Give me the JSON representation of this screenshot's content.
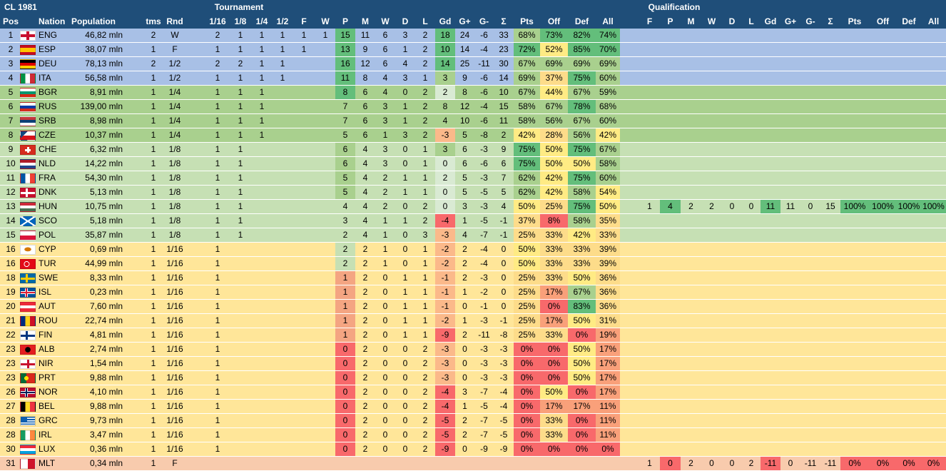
{
  "title": "CL 1981",
  "group_headers": {
    "tournament": "Tournament",
    "qualification": "Qualification"
  },
  "columns": {
    "left": [
      "Pos",
      "Nation",
      "Population",
      "tms",
      "Rnd"
    ],
    "rounds": [
      "1/16",
      "1/8",
      "1/4",
      "1/2",
      "F",
      "W"
    ],
    "stats": [
      "P",
      "M",
      "W",
      "D",
      "L",
      "Gd",
      "G+",
      "G-",
      "Σ",
      "Pts",
      "Off",
      "Def",
      "All"
    ],
    "qual": [
      "F",
      "P",
      "M",
      "W",
      "D",
      "L",
      "Gd",
      "G+",
      "G-",
      "Σ",
      "Pts",
      "Off",
      "Def",
      "All"
    ]
  },
  "colors": {
    "header_bg": "#1f4e79",
    "band_blue": "#a8c0e6",
    "band_green_dark": "#a9d08e",
    "band_green_light": "#c6e0b4",
    "band_yellow": "#ffe699",
    "band_salmon": "#f8cbad",
    "cell_green": "#63be7b",
    "cell_red": "#f8696b",
    "cell_yellow": "#ffeb84"
  },
  "rows": [
    {
      "pos": "1",
      "nation": "ENG",
      "flag": "eng",
      "pop": "46,82 mln",
      "tms": "2",
      "rnd": "W",
      "r": [
        "2",
        "1",
        "1",
        "1",
        "1",
        "1"
      ],
      "s": [
        "15",
        "11",
        "6",
        "3",
        "2",
        "18",
        "24",
        "-6",
        "33",
        "68%",
        "73%",
        "82%",
        "74%"
      ],
      "q": null,
      "band": "band_blue"
    },
    {
      "pos": "2",
      "nation": "ESP",
      "flag": "esp",
      "pop": "38,07 mln",
      "tms": "1",
      "rnd": "F",
      "r": [
        "1",
        "1",
        "1",
        "1",
        "1",
        ""
      ],
      "s": [
        "13",
        "9",
        "6",
        "1",
        "2",
        "10",
        "14",
        "-4",
        "23",
        "72%",
        "52%",
        "85%",
        "70%"
      ],
      "q": null,
      "band": "band_blue"
    },
    {
      "pos": "3",
      "nation": "DEU",
      "flag": "deu",
      "pop": "78,13 mln",
      "tms": "2",
      "rnd": "1/2",
      "r": [
        "2",
        "2",
        "1",
        "1",
        "",
        ""
      ],
      "s": [
        "16",
        "12",
        "6",
        "4",
        "2",
        "14",
        "25",
        "-11",
        "30",
        "67%",
        "69%",
        "69%",
        "69%"
      ],
      "q": null,
      "band": "band_blue"
    },
    {
      "pos": "4",
      "nation": "ITA",
      "flag": "ita",
      "pop": "56,58 mln",
      "tms": "1",
      "rnd": "1/2",
      "r": [
        "1",
        "1",
        "1",
        "1",
        "",
        ""
      ],
      "s": [
        "11",
        "8",
        "4",
        "3",
        "1",
        "3",
        "9",
        "-6",
        "14",
        "69%",
        "37%",
        "75%",
        "60%"
      ],
      "q": null,
      "band": "band_blue"
    },
    {
      "pos": "5",
      "nation": "BGR",
      "flag": "bgr",
      "pop": "8,91 mln",
      "tms": "1",
      "rnd": "1/4",
      "r": [
        "1",
        "1",
        "1",
        "",
        "",
        ""
      ],
      "s": [
        "8",
        "6",
        "4",
        "0",
        "2",
        "2",
        "8",
        "-6",
        "10",
        "67%",
        "44%",
        "67%",
        "59%"
      ],
      "q": null,
      "band": "band_green_dark"
    },
    {
      "pos": "6",
      "nation": "RUS",
      "flag": "rus",
      "pop": "139,00 mln",
      "tms": "1",
      "rnd": "1/4",
      "r": [
        "1",
        "1",
        "1",
        "",
        "",
        ""
      ],
      "s": [
        "7",
        "6",
        "3",
        "1",
        "2",
        "8",
        "12",
        "-4",
        "15",
        "58%",
        "67%",
        "78%",
        "68%"
      ],
      "q": null,
      "band": "band_green_dark"
    },
    {
      "pos": "7",
      "nation": "SRB",
      "flag": "srb",
      "pop": "8,98 mln",
      "tms": "1",
      "rnd": "1/4",
      "r": [
        "1",
        "1",
        "1",
        "",
        "",
        ""
      ],
      "s": [
        "7",
        "6",
        "3",
        "1",
        "2",
        "4",
        "10",
        "-6",
        "11",
        "58%",
        "56%",
        "67%",
        "60%"
      ],
      "q": null,
      "band": "band_green_dark"
    },
    {
      "pos": "8",
      "nation": "CZE",
      "flag": "cze",
      "pop": "10,37 mln",
      "tms": "1",
      "rnd": "1/4",
      "r": [
        "1",
        "1",
        "1",
        "",
        "",
        ""
      ],
      "s": [
        "5",
        "6",
        "1",
        "3",
        "2",
        "-3",
        "5",
        "-8",
        "2",
        "42%",
        "28%",
        "56%",
        "42%"
      ],
      "q": null,
      "band": "band_green_dark"
    },
    {
      "pos": "9",
      "nation": "CHE",
      "flag": "che",
      "pop": "6,32 mln",
      "tms": "1",
      "rnd": "1/8",
      "r": [
        "1",
        "1",
        "",
        "",
        "",
        ""
      ],
      "s": [
        "6",
        "4",
        "3",
        "0",
        "1",
        "3",
        "6",
        "-3",
        "9",
        "75%",
        "50%",
        "75%",
        "67%"
      ],
      "q": null,
      "band": "band_green_light"
    },
    {
      "pos": "10",
      "nation": "NLD",
      "flag": "nld",
      "pop": "14,22 mln",
      "tms": "1",
      "rnd": "1/8",
      "r": [
        "1",
        "1",
        "",
        "",
        "",
        ""
      ],
      "s": [
        "6",
        "4",
        "3",
        "0",
        "1",
        "0",
        "6",
        "-6",
        "6",
        "75%",
        "50%",
        "50%",
        "58%"
      ],
      "q": null,
      "band": "band_green_light"
    },
    {
      "pos": "11",
      "nation": "FRA",
      "flag": "fra",
      "pop": "54,30 mln",
      "tms": "1",
      "rnd": "1/8",
      "r": [
        "1",
        "1",
        "",
        "",
        "",
        ""
      ],
      "s": [
        "5",
        "4",
        "2",
        "1",
        "1",
        "2",
        "5",
        "-3",
        "7",
        "62%",
        "42%",
        "75%",
        "60%"
      ],
      "q": null,
      "band": "band_green_light"
    },
    {
      "pos": "12",
      "nation": "DNK",
      "flag": "dnk",
      "pop": "5,13 mln",
      "tms": "1",
      "rnd": "1/8",
      "r": [
        "1",
        "1",
        "",
        "",
        "",
        ""
      ],
      "s": [
        "5",
        "4",
        "2",
        "1",
        "1",
        "0",
        "5",
        "-5",
        "5",
        "62%",
        "42%",
        "58%",
        "54%"
      ],
      "q": null,
      "band": "band_green_light"
    },
    {
      "pos": "13",
      "nation": "HUN",
      "flag": "hun",
      "pop": "10,75 mln",
      "tms": "1",
      "rnd": "1/8",
      "r": [
        "1",
        "1",
        "",
        "",
        "",
        ""
      ],
      "s": [
        "4",
        "4",
        "2",
        "0",
        "2",
        "0",
        "3",
        "-3",
        "4",
        "50%",
        "25%",
        "75%",
        "50%"
      ],
      "q": [
        "1",
        "4",
        "2",
        "2",
        "0",
        "0",
        "11",
        "11",
        "0",
        "15",
        "100%",
        "100%",
        "100%",
        "100%"
      ],
      "band": "band_green_light"
    },
    {
      "pos": "14",
      "nation": "SCO",
      "flag": "sco",
      "pop": "5,18 mln",
      "tms": "1",
      "rnd": "1/8",
      "r": [
        "1",
        "1",
        "",
        "",
        "",
        ""
      ],
      "s": [
        "3",
        "4",
        "1",
        "1",
        "2",
        "-4",
        "1",
        "-5",
        "-1",
        "37%",
        "8%",
        "58%",
        "35%"
      ],
      "q": null,
      "band": "band_green_light"
    },
    {
      "pos": "15",
      "nation": "POL",
      "flag": "pol",
      "pop": "35,87 mln",
      "tms": "1",
      "rnd": "1/8",
      "r": [
        "1",
        "1",
        "",
        "",
        "",
        ""
      ],
      "s": [
        "2",
        "4",
        "1",
        "0",
        "3",
        "-3",
        "4",
        "-7",
        "-1",
        "25%",
        "33%",
        "42%",
        "33%"
      ],
      "q": null,
      "band": "band_green_light"
    },
    {
      "pos": "16",
      "nation": "CYP",
      "flag": "cyp",
      "pop": "0,69 mln",
      "tms": "1",
      "rnd": "1/16",
      "r": [
        "1",
        "",
        "",
        "",
        "",
        ""
      ],
      "s": [
        "2",
        "2",
        "1",
        "0",
        "1",
        "-2",
        "2",
        "-4",
        "0",
        "50%",
        "33%",
        "33%",
        "39%"
      ],
      "q": null,
      "band": "band_yellow"
    },
    {
      "pos": "16",
      "nation": "TUR",
      "flag": "tur",
      "pop": "44,99 mln",
      "tms": "1",
      "rnd": "1/16",
      "r": [
        "1",
        "",
        "",
        "",
        "",
        ""
      ],
      "s": [
        "2",
        "2",
        "1",
        "0",
        "1",
        "-2",
        "2",
        "-4",
        "0",
        "50%",
        "33%",
        "33%",
        "39%"
      ],
      "q": null,
      "band": "band_yellow"
    },
    {
      "pos": "18",
      "nation": "SWE",
      "flag": "swe",
      "pop": "8,33 mln",
      "tms": "1",
      "rnd": "1/16",
      "r": [
        "1",
        "",
        "",
        "",
        "",
        ""
      ],
      "s": [
        "1",
        "2",
        "0",
        "1",
        "1",
        "-1",
        "2",
        "-3",
        "0",
        "25%",
        "33%",
        "50%",
        "36%"
      ],
      "q": null,
      "band": "band_yellow"
    },
    {
      "pos": "19",
      "nation": "ISL",
      "flag": "isl",
      "pop": "0,23 mln",
      "tms": "1",
      "rnd": "1/16",
      "r": [
        "1",
        "",
        "",
        "",
        "",
        ""
      ],
      "s": [
        "1",
        "2",
        "0",
        "1",
        "1",
        "-1",
        "1",
        "-2",
        "0",
        "25%",
        "17%",
        "67%",
        "36%"
      ],
      "q": null,
      "band": "band_yellow"
    },
    {
      "pos": "20",
      "nation": "AUT",
      "flag": "aut",
      "pop": "7,60 mln",
      "tms": "1",
      "rnd": "1/16",
      "r": [
        "1",
        "",
        "",
        "",
        "",
        ""
      ],
      "s": [
        "1",
        "2",
        "0",
        "1",
        "1",
        "-1",
        "0",
        "-1",
        "0",
        "25%",
        "0%",
        "83%",
        "36%"
      ],
      "q": null,
      "band": "band_yellow"
    },
    {
      "pos": "21",
      "nation": "ROU",
      "flag": "rou",
      "pop": "22,74 mln",
      "tms": "1",
      "rnd": "1/16",
      "r": [
        "1",
        "",
        "",
        "",
        "",
        ""
      ],
      "s": [
        "1",
        "2",
        "0",
        "1",
        "1",
        "-2",
        "1",
        "-3",
        "-1",
        "25%",
        "17%",
        "50%",
        "31%"
      ],
      "q": null,
      "band": "band_yellow"
    },
    {
      "pos": "22",
      "nation": "FIN",
      "flag": "fin",
      "pop": "4,81 mln",
      "tms": "1",
      "rnd": "1/16",
      "r": [
        "1",
        "",
        "",
        "",
        "",
        ""
      ],
      "s": [
        "1",
        "2",
        "0",
        "1",
        "1",
        "-9",
        "2",
        "-11",
        "-8",
        "25%",
        "33%",
        "0%",
        "19%"
      ],
      "q": null,
      "band": "band_yellow"
    },
    {
      "pos": "23",
      "nation": "ALB",
      "flag": "alb",
      "pop": "2,74 mln",
      "tms": "1",
      "rnd": "1/16",
      "r": [
        "1",
        "",
        "",
        "",
        "",
        ""
      ],
      "s": [
        "0",
        "2",
        "0",
        "0",
        "2",
        "-3",
        "0",
        "-3",
        "-3",
        "0%",
        "0%",
        "50%",
        "17%"
      ],
      "q": null,
      "band": "band_yellow"
    },
    {
      "pos": "23",
      "nation": "NIR",
      "flag": "nir",
      "pop": "1,54 mln",
      "tms": "1",
      "rnd": "1/16",
      "r": [
        "1",
        "",
        "",
        "",
        "",
        ""
      ],
      "s": [
        "0",
        "2",
        "0",
        "0",
        "2",
        "-3",
        "0",
        "-3",
        "-3",
        "0%",
        "0%",
        "50%",
        "17%"
      ],
      "q": null,
      "band": "band_yellow"
    },
    {
      "pos": "23",
      "nation": "PRT",
      "flag": "prt",
      "pop": "9,88 mln",
      "tms": "1",
      "rnd": "1/16",
      "r": [
        "1",
        "",
        "",
        "",
        "",
        ""
      ],
      "s": [
        "0",
        "2",
        "0",
        "0",
        "2",
        "-3",
        "0",
        "-3",
        "-3",
        "0%",
        "0%",
        "50%",
        "17%"
      ],
      "q": null,
      "band": "band_yellow"
    },
    {
      "pos": "26",
      "nation": "NOR",
      "flag": "nor",
      "pop": "4,10 mln",
      "tms": "1",
      "rnd": "1/16",
      "r": [
        "1",
        "",
        "",
        "",
        "",
        ""
      ],
      "s": [
        "0",
        "2",
        "0",
        "0",
        "2",
        "-4",
        "3",
        "-7",
        "-4",
        "0%",
        "50%",
        "0%",
        "17%"
      ],
      "q": null,
      "band": "band_yellow"
    },
    {
      "pos": "27",
      "nation": "BEL",
      "flag": "bel",
      "pop": "9,88 mln",
      "tms": "1",
      "rnd": "1/16",
      "r": [
        "1",
        "",
        "",
        "",
        "",
        ""
      ],
      "s": [
        "0",
        "2",
        "0",
        "0",
        "2",
        "-4",
        "1",
        "-5",
        "-4",
        "0%",
        "17%",
        "17%",
        "11%"
      ],
      "q": null,
      "band": "band_yellow"
    },
    {
      "pos": "28",
      "nation": "GRC",
      "flag": "grc",
      "pop": "9,73 mln",
      "tms": "1",
      "rnd": "1/16",
      "r": [
        "1",
        "",
        "",
        "",
        "",
        ""
      ],
      "s": [
        "0",
        "2",
        "0",
        "0",
        "2",
        "-5",
        "2",
        "-7",
        "-5",
        "0%",
        "33%",
        "0%",
        "11%"
      ],
      "q": null,
      "band": "band_yellow"
    },
    {
      "pos": "28",
      "nation": "IRL",
      "flag": "irl",
      "pop": "3,47 mln",
      "tms": "1",
      "rnd": "1/16",
      "r": [
        "1",
        "",
        "",
        "",
        "",
        ""
      ],
      "s": [
        "0",
        "2",
        "0",
        "0",
        "2",
        "-5",
        "2",
        "-7",
        "-5",
        "0%",
        "33%",
        "0%",
        "11%"
      ],
      "q": null,
      "band": "band_yellow"
    },
    {
      "pos": "30",
      "nation": "LUX",
      "flag": "lux",
      "pop": "0,36 mln",
      "tms": "1",
      "rnd": "1/16",
      "r": [
        "1",
        "",
        "",
        "",
        "",
        ""
      ],
      "s": [
        "0",
        "2",
        "0",
        "0",
        "2",
        "-9",
        "0",
        "-9",
        "-9",
        "0%",
        "0%",
        "0%",
        "0%"
      ],
      "q": null,
      "band": "band_yellow"
    },
    {
      "pos": "31",
      "nation": "MLT",
      "flag": "mlt",
      "pop": "0,34 mln",
      "tms": "1",
      "rnd": "F",
      "r": [
        "",
        "",
        "",
        "",
        "",
        ""
      ],
      "s": [
        "",
        "",
        "",
        "",
        "",
        "",
        "",
        "",
        "",
        "",
        "",
        "",
        ""
      ],
      "q": [
        "1",
        "0",
        "2",
        "0",
        "0",
        "2",
        "-11",
        "0",
        "-11",
        "-11",
        "0%",
        "0%",
        "0%",
        "0%"
      ],
      "band": "band_salmon"
    }
  ]
}
